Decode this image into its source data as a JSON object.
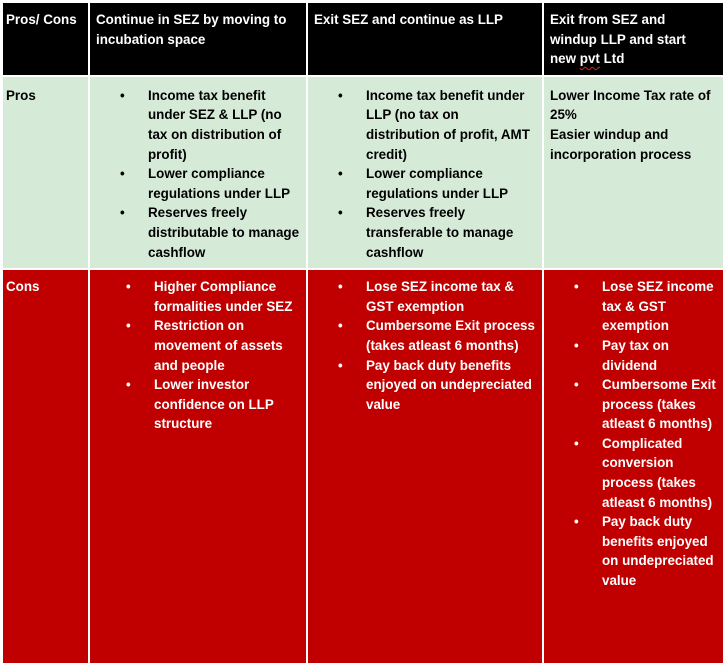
{
  "header": {
    "label": "Pros/ Cons",
    "col1": "Continue in SEZ by moving to incubation space",
    "col2": "Exit SEZ and continue as LLP",
    "col3_lines": [
      "Exit from SEZ and",
      "windup LLP and start"
    ],
    "col3_last_prefix": "new ",
    "col3_last_marked": "pvt",
    "col3_last_suffix": " Ltd"
  },
  "pros": {
    "label": "Pros",
    "col1": [
      "Income tax benefit under SEZ & LLP (no tax on distribution of profit)",
      "Lower compliance regulations under LLP",
      "Reserves freely distributable to manage cashflow"
    ],
    "col2": [
      "Income tax benefit under LLP (no tax on distribution of profit, AMT credit)",
      "Lower compliance regulations under LLP",
      "Reserves freely transferable to manage cashflow"
    ],
    "col3": [
      "Lower Income Tax rate of 25%",
      "Easier windup and incorporation process"
    ]
  },
  "cons": {
    "label": "Cons",
    "col1": [
      "Higher Compliance formalities under SEZ",
      "Restriction on movement of assets and people",
      "Lower investor confidence on LLP structure"
    ],
    "col2": [
      "Lose SEZ income tax & GST exemption",
      "Cumbersome Exit process (takes atleast 6 months)",
      "Pay back duty benefits enjoyed on undepreciated value"
    ],
    "col3": [
      "Lose SEZ income tax & GST exemption",
      "Pay tax on dividend",
      "Cumbersome Exit process (takes atleast 6 months)",
      "Complicated conversion process (takes atleast 6 months)",
      "Pay back duty benefits enjoyed on undepreciated value"
    ]
  },
  "colors": {
    "header_bg": "#000000",
    "pros_bg": "#d6ead8",
    "cons_bg": "#c00000",
    "spellcheck_underline": "#e02020"
  }
}
